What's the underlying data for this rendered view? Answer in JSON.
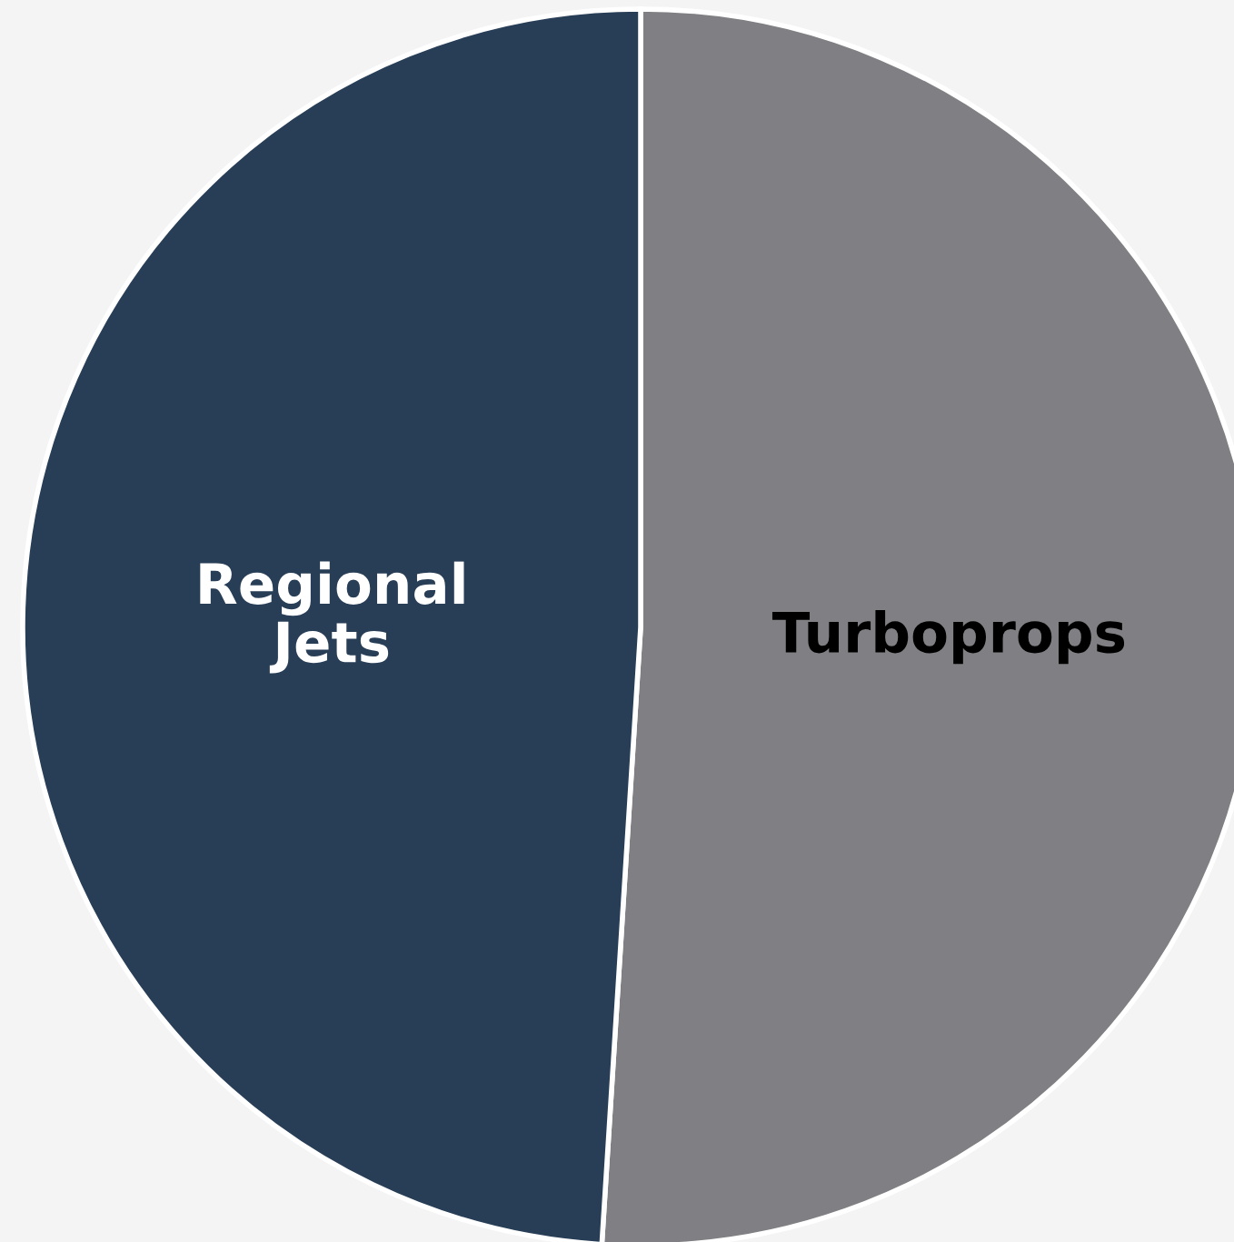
{
  "chart_data": {
    "type": "pie",
    "categories": [
      "Turboprops",
      "Regional Jets"
    ],
    "values": [
      51,
      49
    ],
    "colors": [
      "#808084",
      "#283e57"
    ]
  }
}
